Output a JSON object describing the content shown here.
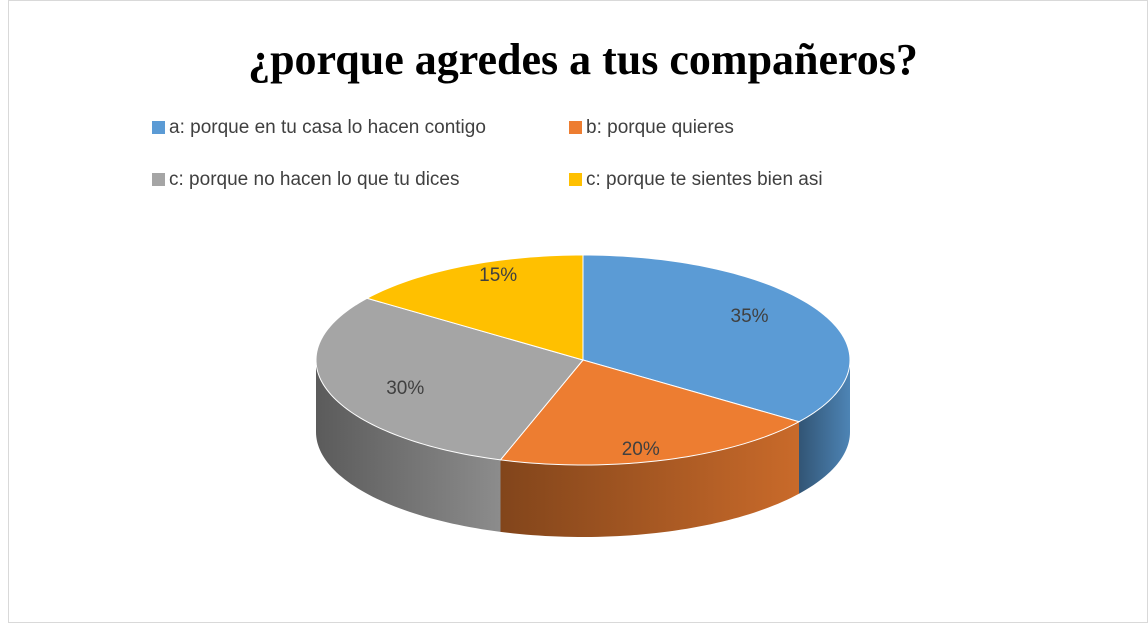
{
  "chart_data": {
    "type": "pie",
    "title": "¿porque agredes a tus compañeros?",
    "categories": [
      "a: porque en tu casa lo hacen contigo",
      "b: porque quieres",
      "c: porque no hacen lo que tu dices",
      "c: porque te sientes bien asi"
    ],
    "values": [
      35,
      20,
      30,
      15
    ],
    "value_labels": [
      "35%",
      "20%",
      "30%",
      "15%"
    ],
    "colors": [
      "#5b9bd5",
      "#ed7d31",
      "#a5a5a5",
      "#ffc000"
    ]
  }
}
